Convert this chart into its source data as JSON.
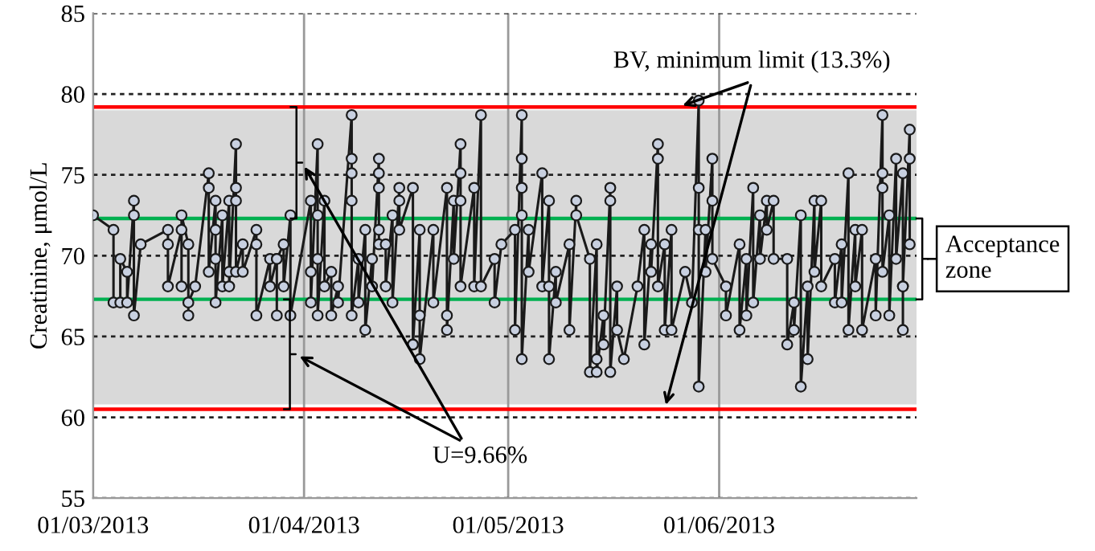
{
  "chart_data": {
    "type": "line",
    "ylabel": "Creatinine, μmol/L",
    "x": [
      "2013-03-01",
      "2013-03-04",
      "2013-03-04",
      "2013-03-05",
      "2013-03-05",
      "2013-03-06",
      "2013-03-06",
      "2013-03-07",
      "2013-03-07",
      "2013-03-07",
      "2013-03-08",
      "2013-03-12",
      "2013-03-12",
      "2013-03-12",
      "2013-03-14",
      "2013-03-14",
      "2013-03-14",
      "2013-03-15",
      "2013-03-15",
      "2013-03-15",
      "2013-03-16",
      "2013-03-18",
      "2013-03-18",
      "2013-03-18",
      "2013-03-19",
      "2013-03-19",
      "2013-03-19",
      "2013-03-19",
      "2013-03-20",
      "2013-03-20",
      "2013-03-21",
      "2013-03-21",
      "2013-03-21",
      "2013-03-22",
      "2013-03-22",
      "2013-03-22",
      "2013-03-22",
      "2013-03-23",
      "2013-03-23",
      "2013-03-25",
      "2013-03-25",
      "2013-03-25",
      "2013-03-27",
      "2013-03-27",
      "2013-03-28",
      "2013-03-28",
      "2013-03-28",
      "2013-03-29",
      "2013-03-29",
      "2013-03-30",
      "2013-03-30",
      "2013-04-02",
      "2013-04-02",
      "2013-04-02",
      "2013-04-03",
      "2013-04-03",
      "2013-04-03",
      "2013-04-03",
      "2013-04-04",
      "2013-04-04",
      "2013-04-05",
      "2013-04-05",
      "2013-04-06",
      "2013-04-06",
      "2013-04-08",
      "2013-04-08",
      "2013-04-08",
      "2013-04-08",
      "2013-04-08",
      "2013-04-09",
      "2013-04-09",
      "2013-04-10",
      "2013-04-10",
      "2013-04-11",
      "2013-04-11",
      "2013-04-12",
      "2013-04-12",
      "2013-04-12",
      "2013-04-12",
      "2013-04-12",
      "2013-04-13",
      "2013-04-13",
      "2013-04-14",
      "2013-04-14",
      "2013-04-15",
      "2013-04-15",
      "2013-04-15",
      "2013-04-17",
      "2013-04-17",
      "2013-04-17",
      "2013-04-18",
      "2013-04-18",
      "2013-04-18",
      "2013-04-20",
      "2013-04-20",
      "2013-04-22",
      "2013-04-22",
      "2013-04-22",
      "2013-04-23",
      "2013-04-23",
      "2013-04-24",
      "2013-04-24",
      "2013-04-24",
      "2013-04-24",
      "2013-04-26",
      "2013-04-26",
      "2013-04-27",
      "2013-04-27",
      "2013-04-29",
      "2013-04-29",
      "2013-04-30",
      "2013-05-02",
      "2013-05-02",
      "2013-05-03",
      "2013-05-03",
      "2013-05-03",
      "2013-05-03",
      "2013-05-03",
      "2013-05-04",
      "2013-05-04",
      "2013-05-06",
      "2013-05-06",
      "2013-05-07",
      "2013-05-07",
      "2013-05-07",
      "2013-05-08",
      "2013-05-08",
      "2013-05-10",
      "2013-05-10",
      "2013-05-11",
      "2013-05-11",
      "2013-05-13",
      "2013-05-13",
      "2013-05-14",
      "2013-05-14",
      "2013-05-14",
      "2013-05-15",
      "2013-05-15",
      "2013-05-16",
      "2013-05-16",
      "2013-05-16",
      "2013-05-17",
      "2013-05-17",
      "2013-05-18",
      "2013-05-20",
      "2013-05-21",
      "2013-05-21",
      "2013-05-22",
      "2013-05-22",
      "2013-05-23",
      "2013-05-23",
      "2013-05-23",
      "2013-05-24",
      "2013-05-24",
      "2013-05-25",
      "2013-05-25",
      "2013-05-27",
      "2013-05-28",
      "2013-05-29",
      "2013-05-29",
      "2013-05-29",
      "2013-05-29",
      "2013-05-30",
      "2013-05-30",
      "2013-05-31",
      "2013-05-31",
      "2013-05-31",
      "2013-06-02",
      "2013-06-02",
      "2013-06-04",
      "2013-06-04",
      "2013-06-05",
      "2013-06-05",
      "2013-06-06",
      "2013-06-06",
      "2013-06-07",
      "2013-06-07",
      "2013-06-08",
      "2013-06-08",
      "2013-06-09",
      "2013-06-09",
      "2013-06-11",
      "2013-06-11",
      "2013-06-12",
      "2013-06-12",
      "2013-06-13",
      "2013-06-13",
      "2013-06-14",
      "2013-06-14",
      "2013-06-15",
      "2013-06-15",
      "2013-06-16",
      "2013-06-16",
      "2013-06-18",
      "2013-06-18",
      "2013-06-19",
      "2013-06-19",
      "2013-06-20",
      "2013-06-20",
      "2013-06-21",
      "2013-06-21",
      "2013-06-22",
      "2013-06-22",
      "2013-06-24",
      "2013-06-24",
      "2013-06-25",
      "2013-06-25",
      "2013-06-25",
      "2013-06-25",
      "2013-06-26",
      "2013-06-26",
      "2013-06-27",
      "2013-06-27",
      "2013-06-28",
      "2013-06-28",
      "2013-06-28",
      "2013-06-28",
      "2013-06-29",
      "2013-06-29",
      "2013-06-29"
    ],
    "series": [
      {
        "color": "#1a1a1a",
        "values": [
          72.5,
          71.6,
          67.1,
          67.1,
          69.8,
          69.0,
          67.1,
          73.4,
          72.5,
          66.3,
          70.7,
          71.6,
          70.7,
          68.1,
          71.6,
          68.1,
          72.5,
          70.7,
          66.3,
          67.1,
          68.1,
          75.1,
          74.2,
          69.0,
          73.4,
          71.6,
          69.8,
          67.1,
          72.5,
          68.1,
          73.4,
          69.0,
          68.1,
          76.9,
          74.2,
          73.4,
          69.0,
          70.7,
          69.0,
          71.6,
          70.7,
          66.3,
          69.8,
          68.1,
          69.8,
          66.3,
          69.8,
          70.7,
          68.1,
          72.5,
          66.3,
          73.4,
          69.0,
          67.1,
          76.9,
          72.5,
          69.8,
          66.3,
          73.4,
          68.1,
          69.0,
          66.3,
          68.1,
          67.1,
          78.7,
          76.0,
          75.1,
          73.4,
          66.3,
          69.8,
          67.1,
          71.6,
          65.4,
          69.8,
          68.1,
          76.0,
          75.1,
          74.2,
          71.6,
          70.7,
          70.7,
          68.1,
          72.5,
          67.1,
          74.2,
          73.4,
          71.6,
          74.2,
          64.5,
          64.5,
          71.6,
          66.3,
          63.6,
          71.6,
          67.1,
          74.2,
          66.3,
          65.4,
          73.4,
          69.8,
          76.9,
          75.1,
          73.4,
          68.1,
          74.2,
          68.1,
          78.7,
          68.1,
          69.8,
          67.1,
          70.7,
          71.6,
          65.4,
          78.7,
          76.0,
          74.2,
          72.5,
          63.6,
          71.6,
          69.0,
          75.1,
          68.1,
          73.4,
          68.1,
          63.6,
          69.0,
          67.1,
          70.7,
          65.4,
          73.4,
          72.5,
          69.8,
          62.8,
          70.7,
          63.6,
          62.8,
          66.3,
          64.5,
          74.2,
          73.4,
          62.8,
          68.1,
          65.4,
          63.6,
          68.1,
          71.6,
          64.5,
          70.7,
          69.0,
          76.9,
          76.0,
          68.1,
          70.7,
          65.4,
          71.6,
          65.4,
          69.0,
          67.1,
          79.6,
          74.2,
          71.6,
          61.9,
          71.6,
          69.0,
          76.0,
          73.4,
          69.8,
          68.1,
          66.3,
          70.7,
          65.4,
          69.8,
          66.3,
          74.2,
          67.1,
          72.5,
          69.8,
          73.4,
          71.6,
          73.4,
          69.8,
          69.8,
          64.5,
          67.1,
          65.4,
          72.5,
          61.9,
          68.1,
          63.6,
          73.4,
          69.0,
          73.4,
          68.1,
          69.8,
          67.1,
          70.7,
          67.1,
          75.1,
          65.4,
          71.6,
          68.1,
          71.6,
          65.4,
          69.8,
          66.3,
          78.7,
          75.1,
          74.2,
          69.0,
          72.5,
          66.3,
          76.0,
          69.8,
          75.1,
          68.1,
          65.4,
          68.1,
          77.8,
          76.0,
          70.7
        ]
      }
    ],
    "marker": "circle",
    "line_style": "solid",
    "grid": true,
    "legend": false,
    "xlim": [
      "2013-03-01",
      "2013-06-30"
    ],
    "xticks": [
      {
        "value": "2013-03-01",
        "label": "01/03/2013"
      },
      {
        "value": "2013-04-01",
        "label": "01/04/2013"
      },
      {
        "value": "2013-05-01",
        "label": "01/05/2013"
      },
      {
        "value": "2013-06-01",
        "label": "01/06/2013"
      }
    ],
    "ylim": [
      55,
      85
    ],
    "yticks": [
      55,
      60,
      65,
      70,
      75,
      80,
      85
    ],
    "bands": [
      {
        "axis": "y",
        "from": 60.8,
        "to": 79.0,
        "color": "#d9d9d9"
      }
    ],
    "ref_lines": [
      {
        "axis": "y",
        "value": 79.2,
        "color": "#ff0000"
      },
      {
        "axis": "y",
        "value": 60.5,
        "color": "#ff0000"
      },
      {
        "axis": "y",
        "value": 72.3,
        "color": "#00b050"
      },
      {
        "axis": "y",
        "value": 67.3,
        "color": "#00b050"
      }
    ],
    "annotations": [
      {
        "text": "BV, minimum limit (13.3%)",
        "x": "2013-05-26",
        "y": 79.2
      },
      "Acceptance zone",
      "U=9.66%"
    ]
  }
}
